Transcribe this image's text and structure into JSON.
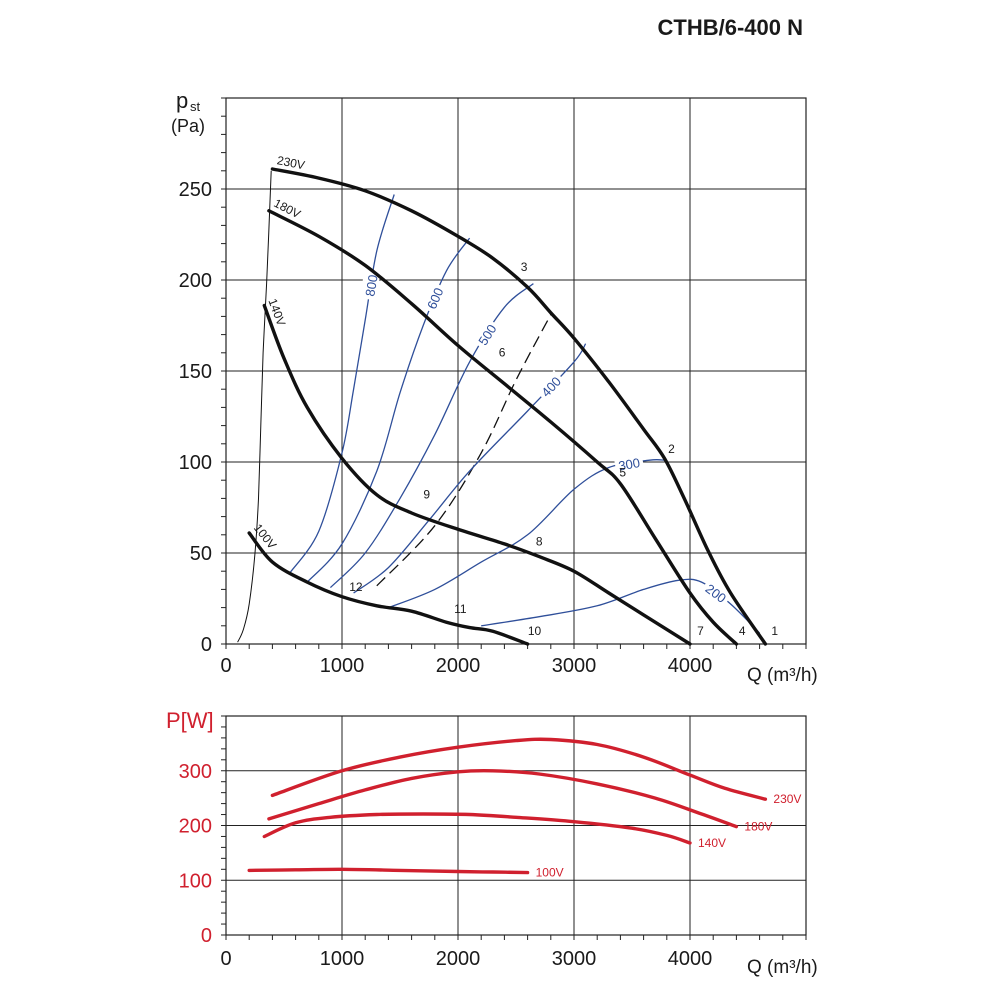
{
  "title": "CTHB/6-400 N",
  "colors": {
    "fan_curve": "#111111",
    "efficiency": "#2f4f9a",
    "power": "#d0202e",
    "grid": "#222222"
  },
  "chart_data": [
    {
      "type": "line",
      "ylabel_main": "p",
      "ylabel_sub": "st",
      "ylabel_unit": "(Pa)",
      "xlabel": "Q (m³/h)",
      "xlim": [
        0,
        5000
      ],
      "ylim": [
        0,
        300
      ],
      "x_ticks": [
        "0",
        "1000",
        "2000",
        "3000",
        "4000"
      ],
      "x_tick_values": [
        0,
        1000,
        2000,
        3000,
        4000
      ],
      "y_ticks": [
        "0",
        "50",
        "100",
        "150",
        "200",
        "250"
      ],
      "y_tick_values": [
        0,
        50,
        100,
        150,
        200,
        250
      ],
      "grid": true,
      "series": [
        {
          "name": "230V",
          "kind": "fan",
          "points": [
            [
              400,
              261
            ],
            [
              800,
              256
            ],
            [
              1200,
              249
            ],
            [
              1600,
              238
            ],
            [
              2000,
              224
            ],
            [
              2300,
              212
            ],
            [
              2600,
              196
            ],
            [
              2800,
              182
            ],
            [
              3000,
              168
            ],
            [
              3300,
              144
            ],
            [
              3600,
              118
            ],
            [
              3780,
              102
            ],
            [
              3950,
              80
            ],
            [
              4150,
              52
            ],
            [
              4350,
              28
            ],
            [
              4650,
              0
            ]
          ]
        },
        {
          "name": "180V",
          "kind": "fan",
          "points": [
            [
              370,
              238
            ],
            [
              800,
              224
            ],
            [
              1200,
              208
            ],
            [
              1600,
              187
            ],
            [
              2000,
              164
            ],
            [
              2400,
              143
            ],
            [
              2800,
              122
            ],
            [
              3200,
              100
            ],
            [
              3400,
              88
            ],
            [
              3700,
              58
            ],
            [
              4000,
              28
            ],
            [
              4200,
              12
            ],
            [
              4400,
              0
            ]
          ]
        },
        {
          "name": "140V",
          "kind": "fan",
          "points": [
            [
              330,
              186
            ],
            [
              500,
              157
            ],
            [
              700,
              130
            ],
            [
              1000,
              102
            ],
            [
              1300,
              82
            ],
            [
              1600,
              72
            ],
            [
              2000,
              63
            ],
            [
              2400,
              55
            ],
            [
              2700,
              48
            ],
            [
              3000,
              40
            ],
            [
              3300,
              28
            ],
            [
              3600,
              16
            ],
            [
              4000,
              0
            ]
          ]
        },
        {
          "name": "100V",
          "kind": "fan",
          "points": [
            [
              200,
              61
            ],
            [
              400,
              45
            ],
            [
              700,
              34
            ],
            [
              1000,
              26
            ],
            [
              1300,
              21
            ],
            [
              1600,
              18
            ],
            [
              1900,
              12
            ],
            [
              2100,
              9
            ],
            [
              2300,
              7
            ],
            [
              2600,
              0
            ]
          ]
        },
        {
          "name": "",
          "kind": "system",
          "points": [
            [
              390,
              260
            ],
            [
              350,
              198
            ],
            [
              320,
              160
            ],
            [
              300,
              120
            ],
            [
              280,
              80
            ],
            [
              250,
              50
            ],
            [
              200,
              22
            ],
            [
              150,
              8
            ],
            [
              100,
              1
            ]
          ]
        },
        {
          "name": "",
          "kind": "dashed",
          "points": [
            [
              1300,
              32
            ],
            [
              1800,
              65
            ],
            [
              2200,
              105
            ],
            [
              2500,
              145
            ],
            [
              2800,
              181
            ]
          ]
        }
      ],
      "efficiency_curves": [
        {
          "label": "800",
          "points": [
            [
              550,
              39
            ],
            [
              800,
              62
            ],
            [
              1000,
              105
            ],
            [
              1100,
              140
            ],
            [
              1200,
              178
            ],
            [
              1300,
              216
            ],
            [
              1450,
              247
            ]
          ]
        },
        {
          "label": "600",
          "points": [
            [
              700,
              34
            ],
            [
              1000,
              55
            ],
            [
              1300,
              95
            ],
            [
              1500,
              138
            ],
            [
              1700,
              175
            ],
            [
              1900,
              205
            ],
            [
              2100,
              223
            ]
          ]
        },
        {
          "label": "500",
          "points": [
            [
              900,
              31
            ],
            [
              1200,
              50
            ],
            [
              1500,
              80
            ],
            [
              1800,
              115
            ],
            [
              2100,
              155
            ],
            [
              2400,
              185
            ],
            [
              2650,
              198
            ]
          ]
        },
        {
          "label": "400",
          "points": [
            [
              1100,
              28
            ],
            [
              1400,
              42
            ],
            [
              1750,
              68
            ],
            [
              2100,
              95
            ],
            [
              2600,
              128
            ],
            [
              3000,
              155
            ],
            [
              3100,
              165
            ]
          ]
        },
        {
          "label": "300",
          "points": [
            [
              1400,
              20
            ],
            [
              1800,
              30
            ],
            [
              2200,
              45
            ],
            [
              2600,
              60
            ],
            [
              3000,
              85
            ],
            [
              3300,
              97
            ],
            [
              3650,
              101
            ],
            [
              3780,
              101
            ]
          ]
        },
        {
          "label": "200",
          "points": [
            [
              2200,
              10
            ],
            [
              2700,
              15
            ],
            [
              3200,
              21
            ],
            [
              3600,
              30
            ],
            [
              3900,
              35
            ],
            [
              4100,
              34
            ],
            [
              4350,
              22
            ],
            [
              4600,
              6
            ]
          ]
        }
      ],
      "markers": [
        {
          "label": "1",
          "x": 4730,
          "y": 5
        },
        {
          "label": "2",
          "x": 3840,
          "y": 105
        },
        {
          "label": "3",
          "x": 2570,
          "y": 205
        },
        {
          "label": "4",
          "x": 4450,
          "y": 5
        },
        {
          "label": "5",
          "x": 3420,
          "y": 92
        },
        {
          "label": "6",
          "x": 2380,
          "y": 158
        },
        {
          "label": "7",
          "x": 4090,
          "y": 5
        },
        {
          "label": "8",
          "x": 2700,
          "y": 54
        },
        {
          "label": "9",
          "x": 1730,
          "y": 80
        },
        {
          "label": "10",
          "x": 2660,
          "y": 5
        },
        {
          "label": "11",
          "x": 2020,
          "y": 17
        },
        {
          "label": "12",
          "x": 1120,
          "y": 29
        }
      ]
    },
    {
      "type": "line",
      "ylabel": "P[W]",
      "xlabel": "Q (m³/h)",
      "xlim": [
        0,
        5000
      ],
      "ylim": [
        0,
        400
      ],
      "x_ticks": [
        "0",
        "1000",
        "2000",
        "3000",
        "4000"
      ],
      "x_tick_values": [
        0,
        1000,
        2000,
        3000,
        4000
      ],
      "y_ticks": [
        "0",
        "100",
        "200",
        "300"
      ],
      "y_tick_values": [
        0,
        100,
        200,
        300
      ],
      "grid": true,
      "series": [
        {
          "name": "230V",
          "points": [
            [
              400,
              255
            ],
            [
              1000,
              300
            ],
            [
              1500,
              325
            ],
            [
              2000,
              343
            ],
            [
              2500,
              355
            ],
            [
              2800,
              357
            ],
            [
              3200,
              348
            ],
            [
              3600,
              325
            ],
            [
              4000,
              292
            ],
            [
              4300,
              268
            ],
            [
              4650,
              248
            ]
          ]
        },
        {
          "name": "180V",
          "points": [
            [
              370,
              212
            ],
            [
              800,
              240
            ],
            [
              1200,
              265
            ],
            [
              1600,
              286
            ],
            [
              2000,
              298
            ],
            [
              2300,
              300
            ],
            [
              2700,
              294
            ],
            [
              3200,
              276
            ],
            [
              3700,
              250
            ],
            [
              4100,
              221
            ],
            [
              4400,
              198
            ]
          ]
        },
        {
          "name": "140V",
          "points": [
            [
              330,
              180
            ],
            [
              600,
              205
            ],
            [
              900,
              215
            ],
            [
              1300,
              220
            ],
            [
              1700,
              221
            ],
            [
              2100,
              220
            ],
            [
              2500,
              215
            ],
            [
              3000,
              207
            ],
            [
              3500,
              195
            ],
            [
              3800,
              182
            ],
            [
              4000,
              168
            ]
          ]
        },
        {
          "name": "100V",
          "points": [
            [
              200,
              118
            ],
            [
              600,
              119
            ],
            [
              1000,
              120
            ],
            [
              1500,
              118
            ],
            [
              2000,
              116
            ],
            [
              2300,
              115
            ],
            [
              2600,
              114
            ]
          ]
        }
      ]
    }
  ]
}
